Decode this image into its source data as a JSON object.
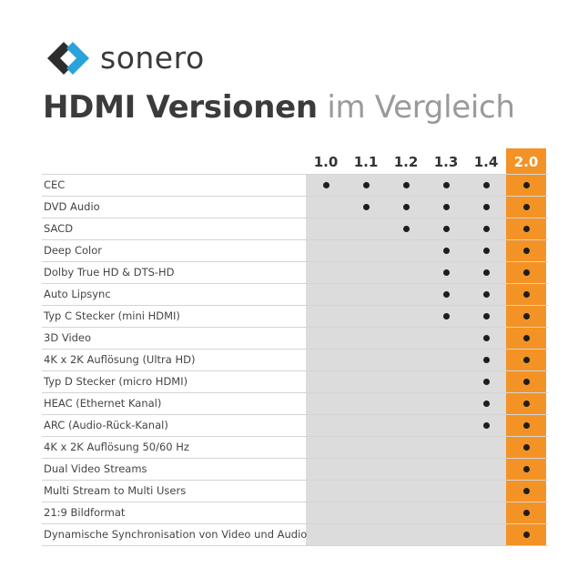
{
  "brand": {
    "name": "sonero",
    "logo_icon": "sonero-chevron-logo-icon",
    "colors": {
      "dark": "#2d2d2d",
      "blue": "#2aa2dc"
    }
  },
  "title": {
    "bold": "HDMI Versionen",
    "light": " im Vergleich"
  },
  "colors": {
    "gray_column": "#dcdcdc",
    "highlight_column": "#f39325",
    "dot": "#1e1e1e"
  },
  "versions": [
    "1.0",
    "1.1",
    "1.2",
    "1.3",
    "1.4",
    "2.0"
  ],
  "highlighted_version": "2.0",
  "features": [
    {
      "label": "CEC",
      "since": "1.0"
    },
    {
      "label": "DVD Audio",
      "since": "1.1"
    },
    {
      "label": "SACD",
      "since": "1.2"
    },
    {
      "label": "Deep Color",
      "since": "1.3"
    },
    {
      "label": "Dolby True HD & DTS-HD",
      "since": "1.3"
    },
    {
      "label": "Auto Lipsync",
      "since": "1.3"
    },
    {
      "label": "Typ C Stecker (mini HDMI)",
      "since": "1.3"
    },
    {
      "label": "3D Video",
      "since": "1.4"
    },
    {
      "label": "4K x 2K Auflösung (Ultra HD)",
      "since": "1.4"
    },
    {
      "label": "Typ D Stecker (micro HDMI)",
      "since": "1.4"
    },
    {
      "label": "HEAC (Ethernet Kanal)",
      "since": "1.4"
    },
    {
      "label": "ARC (Audio-Rück-Kanal)",
      "since": "1.4"
    },
    {
      "label": "4K x 2K Auflösung 50/60 Hz",
      "since": "2.0"
    },
    {
      "label": "Dual Video Streams",
      "since": "2.0"
    },
    {
      "label": "Multi Stream to Multi Users",
      "since": "2.0"
    },
    {
      "label": "21:9 Bildformat",
      "since": "2.0"
    },
    {
      "label": "Dynamische Synchronisation von Video und Audio",
      "since": "2.0"
    }
  ]
}
